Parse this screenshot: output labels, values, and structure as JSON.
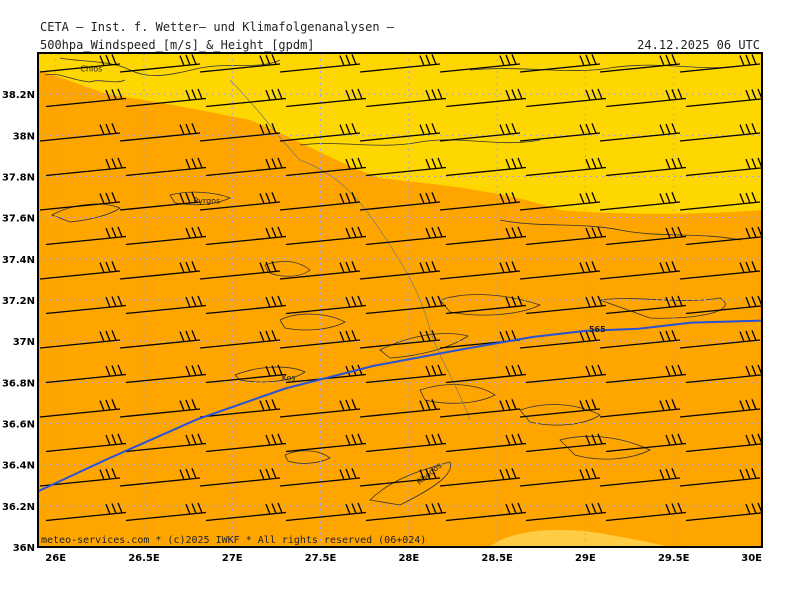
{
  "header": {
    "title": "CETA — Inst. f. Wetter— und Klimafolgenanalysen —",
    "subtitle": "500hpa_Windspeed_[m/s]_&_Height_[gpdm]",
    "timestamp": "24.12.2025 06 UTC"
  },
  "credit": "meteo-services.com * (c)2025 IWKF * All rights reserved (06+024)",
  "axes": {
    "lon_labels": [
      "26E",
      "26.5E",
      "27E",
      "27.5E",
      "28E",
      "28.5E",
      "29E",
      "29.5E",
      "30E"
    ],
    "lat_labels": [
      "36N",
      "36.2N",
      "36.4N",
      "36.6N",
      "36.8N",
      "37N",
      "37.2N",
      "37.4N",
      "37.6N",
      "37.8N",
      "38N",
      "38.2N"
    ]
  },
  "places": [
    {
      "name": "Chios",
      "lon": 26.14,
      "lat": 38.31
    },
    {
      "name": "Pyrgos",
      "lon": 26.78,
      "lat": 37.67
    },
    {
      "name": "Kos",
      "lon": 27.28,
      "lat": 36.81
    },
    {
      "name": "Rhodos",
      "lon": 28.06,
      "lat": 36.3
    }
  ],
  "contour": {
    "label": "565",
    "color": "#2a52d6",
    "path": [
      [
        25.9,
        36.27
      ],
      [
        26.3,
        36.43
      ],
      [
        26.8,
        36.62
      ],
      [
        27.3,
        36.77
      ],
      [
        27.8,
        36.88
      ],
      [
        28.3,
        36.96
      ],
      [
        28.7,
        37.02
      ],
      [
        29.0,
        37.05
      ],
      [
        29.3,
        37.06
      ],
      [
        29.6,
        37.09
      ],
      [
        30.0,
        37.1
      ]
    ]
  },
  "colors": {
    "wind_band_fast": "#ffa500",
    "wind_band_moderate": "#ffd700",
    "frame": "#000000",
    "grid": "#9aa4ff"
  }
}
